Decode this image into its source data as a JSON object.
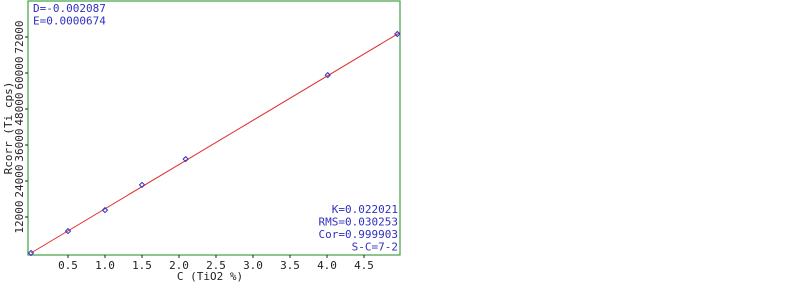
{
  "chart_data": {
    "type": "scatter",
    "x_label": "C (TiO2 %)",
    "y_label": "Rcorr (Ti cps)",
    "annotations_top": [
      "D=-0.002087",
      "E=0.0000674"
    ],
    "annotations_bottom": [
      "K=0.022021",
      "RMS=0.030253",
      "Cor=0.999903",
      "S-C=7-2"
    ],
    "x": [
      0,
      0.5,
      1.0,
      1.5,
      2.09,
      4.01,
      4.95
    ],
    "values": [
      0,
      7300,
      14300,
      22700,
      31300,
      59300,
      73000
    ],
    "color": "#3030c0",
    "fit": {
      "x": [
        0,
        5
      ],
      "values": [
        0,
        73700
      ],
      "color": "#e03030"
    },
    "xlim": [
      0,
      5
    ],
    "ylim": [
      0,
      84000
    ],
    "xticks": [
      {
        "value": 0.5,
        "label": "0.5"
      },
      {
        "value": 1.0,
        "label": "1.0"
      },
      {
        "value": 1.5,
        "label": "1.5"
      },
      {
        "value": 2.0,
        "label": "2.0"
      },
      {
        "value": 2.5,
        "label": "2.5"
      },
      {
        "value": 3.0,
        "label": "3.0"
      },
      {
        "value": 3.5,
        "label": "3.5"
      },
      {
        "value": 4.0,
        "label": "4.0"
      },
      {
        "value": 4.5,
        "label": "4.5"
      }
    ],
    "yticks": [
      12000,
      24000,
      36000,
      48000,
      60000,
      72000
    ],
    "frame_color": "#40a040"
  }
}
